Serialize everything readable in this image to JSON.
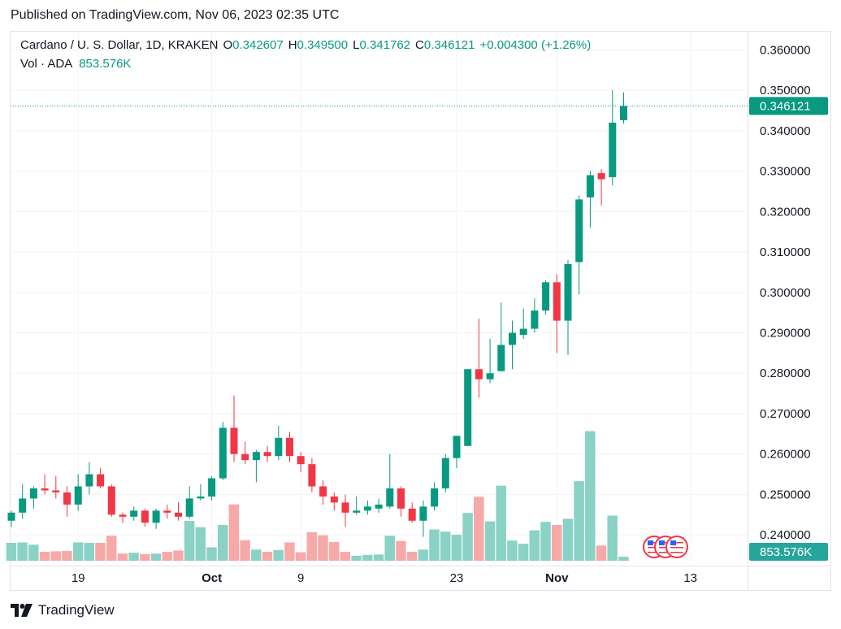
{
  "published": "Published on TradingView.com, Nov 06, 2023 02:35 UTC",
  "legend": {
    "symbol": "Cardano / U. S. Dollar, 1D, KRAKEN",
    "o_label": "O",
    "o_value": "0.342607",
    "h_label": "H",
    "h_value": "0.349500",
    "l_label": "L",
    "l_value": "0.341762",
    "c_label": "C",
    "c_value": "0.346121",
    "change": "+0.004300 (+1.26%)"
  },
  "volume_legend": {
    "label": "Vol · ADA",
    "value": "853.576K"
  },
  "footer": {
    "brand": "TradingView",
    "logo_icon": "tradingview-logo-icon"
  },
  "colors": {
    "up": "#089981",
    "down": "#f23645",
    "up_volume": "#8ad1c6",
    "down_volume": "#f7a9a7",
    "grid": "#f0f3fa"
  },
  "chart_data": {
    "type": "candlestick",
    "y_ticks": [
      "0.360000",
      "0.350000",
      "0.340000",
      "0.330000",
      "0.320000",
      "0.310000",
      "0.300000",
      "0.290000",
      "0.280000",
      "0.270000",
      "0.260000",
      "0.250000",
      "0.240000"
    ],
    "y_range": [
      0.2334,
      0.3645
    ],
    "x_ticks": [
      {
        "label": "19",
        "index": 6
      },
      {
        "label": "Oct",
        "index": 18
      },
      {
        "label": "9",
        "index": 26
      },
      {
        "label": "23",
        "index": 40
      },
      {
        "label": "Nov",
        "index": 49
      },
      {
        "label": "13",
        "index": 61
      }
    ],
    "x_labels_note": "index 0 ≈ 2023-09-13, daily candles",
    "last_price": "0.346121",
    "last_volume": "853.576K",
    "volume_scale_max": 30,
    "candles": [
      {
        "o": 0.2435,
        "h": 0.246,
        "l": 0.242,
        "c": 0.2455,
        "v": 4.0
      },
      {
        "o": 0.2455,
        "h": 0.2525,
        "l": 0.244,
        "c": 0.249,
        "v": 4.1
      },
      {
        "o": 0.249,
        "h": 0.252,
        "l": 0.2465,
        "c": 0.2515,
        "v": 3.6
      },
      {
        "o": 0.2515,
        "h": 0.255,
        "l": 0.25,
        "c": 0.251,
        "v": 2.0
      },
      {
        "o": 0.251,
        "h": 0.2545,
        "l": 0.249,
        "c": 0.2505,
        "v": 2.1
      },
      {
        "o": 0.2505,
        "h": 0.252,
        "l": 0.2445,
        "c": 0.2475,
        "v": 2.2
      },
      {
        "o": 0.2475,
        "h": 0.255,
        "l": 0.246,
        "c": 0.252,
        "v": 4.1
      },
      {
        "o": 0.252,
        "h": 0.258,
        "l": 0.25,
        "c": 0.255,
        "v": 4.0
      },
      {
        "o": 0.255,
        "h": 0.2565,
        "l": 0.2515,
        "c": 0.252,
        "v": 4.0
      },
      {
        "o": 0.252,
        "h": 0.2525,
        "l": 0.2445,
        "c": 0.245,
        "v": 5.6
      },
      {
        "o": 0.245,
        "h": 0.2455,
        "l": 0.243,
        "c": 0.2445,
        "v": 1.6
      },
      {
        "o": 0.2445,
        "h": 0.247,
        "l": 0.2435,
        "c": 0.246,
        "v": 1.8
      },
      {
        "o": 0.246,
        "h": 0.2465,
        "l": 0.242,
        "c": 0.243,
        "v": 1.5
      },
      {
        "o": 0.243,
        "h": 0.2465,
        "l": 0.2415,
        "c": 0.246,
        "v": 1.6
      },
      {
        "o": 0.246,
        "h": 0.2475,
        "l": 0.244,
        "c": 0.2455,
        "v": 2.0
      },
      {
        "o": 0.2455,
        "h": 0.248,
        "l": 0.2435,
        "c": 0.2445,
        "v": 2.3
      },
      {
        "o": 0.2445,
        "h": 0.252,
        "l": 0.244,
        "c": 0.249,
        "v": 8.9
      },
      {
        "o": 0.249,
        "h": 0.2525,
        "l": 0.2485,
        "c": 0.2495,
        "v": 7.5
      },
      {
        "o": 0.2495,
        "h": 0.2545,
        "l": 0.2485,
        "c": 0.254,
        "v": 3.0
      },
      {
        "o": 0.254,
        "h": 0.268,
        "l": 0.2535,
        "c": 0.2665,
        "v": 8.0
      },
      {
        "o": 0.2665,
        "h": 0.2745,
        "l": 0.258,
        "c": 0.26,
        "v": 12.6
      },
      {
        "o": 0.26,
        "h": 0.263,
        "l": 0.2575,
        "c": 0.2585,
        "v": 4.6
      },
      {
        "o": 0.2585,
        "h": 0.261,
        "l": 0.253,
        "c": 0.2605,
        "v": 2.5
      },
      {
        "o": 0.2605,
        "h": 0.262,
        "l": 0.258,
        "c": 0.2595,
        "v": 2.0
      },
      {
        "o": 0.2595,
        "h": 0.267,
        "l": 0.2585,
        "c": 0.264,
        "v": 2.4
      },
      {
        "o": 0.264,
        "h": 0.2655,
        "l": 0.258,
        "c": 0.2595,
        "v": 4.1
      },
      {
        "o": 0.2595,
        "h": 0.2605,
        "l": 0.2555,
        "c": 0.2575,
        "v": 1.9
      },
      {
        "o": 0.2575,
        "h": 0.259,
        "l": 0.2505,
        "c": 0.252,
        "v": 6.4
      },
      {
        "o": 0.252,
        "h": 0.2535,
        "l": 0.2475,
        "c": 0.2495,
        "v": 5.7
      },
      {
        "o": 0.2495,
        "h": 0.2505,
        "l": 0.246,
        "c": 0.248,
        "v": 4.2
      },
      {
        "o": 0.248,
        "h": 0.25,
        "l": 0.242,
        "c": 0.2455,
        "v": 2.0
      },
      {
        "o": 0.2455,
        "h": 0.2495,
        "l": 0.245,
        "c": 0.246,
        "v": 1.1
      },
      {
        "o": 0.246,
        "h": 0.2485,
        "l": 0.245,
        "c": 0.247,
        "v": 1.3
      },
      {
        "o": 0.2465,
        "h": 0.249,
        "l": 0.2455,
        "c": 0.2475,
        "v": 1.4
      },
      {
        "o": 0.247,
        "h": 0.26,
        "l": 0.2465,
        "c": 0.2515,
        "v": 5.6
      },
      {
        "o": 0.2515,
        "h": 0.252,
        "l": 0.2445,
        "c": 0.2465,
        "v": 4.4
      },
      {
        "o": 0.2465,
        "h": 0.248,
        "l": 0.243,
        "c": 0.2435,
        "v": 2.0
      },
      {
        "o": 0.2435,
        "h": 0.2485,
        "l": 0.2395,
        "c": 0.247,
        "v": 2.5
      },
      {
        "o": 0.247,
        "h": 0.253,
        "l": 0.246,
        "c": 0.2515,
        "v": 7.0
      },
      {
        "o": 0.2515,
        "h": 0.26,
        "l": 0.2505,
        "c": 0.259,
        "v": 6.5
      },
      {
        "o": 0.259,
        "h": 0.2645,
        "l": 0.2565,
        "c": 0.2645,
        "v": 5.8
      },
      {
        "o": 0.262,
        "h": 0.281,
        "l": 0.262,
        "c": 0.281,
        "v": 10.7
      },
      {
        "o": 0.281,
        "h": 0.2935,
        "l": 0.274,
        "c": 0.2785,
        "v": 14.3
      },
      {
        "o": 0.2785,
        "h": 0.2885,
        "l": 0.2775,
        "c": 0.28,
        "v": 8.8
      },
      {
        "o": 0.2805,
        "h": 0.2975,
        "l": 0.2805,
        "c": 0.287,
        "v": 16.8
      },
      {
        "o": 0.287,
        "h": 0.293,
        "l": 0.281,
        "c": 0.29,
        "v": 4.5
      },
      {
        "o": 0.2895,
        "h": 0.296,
        "l": 0.2885,
        "c": 0.291,
        "v": 3.8
      },
      {
        "o": 0.291,
        "h": 0.2985,
        "l": 0.29,
        "c": 0.2955,
        "v": 6.8
      },
      {
        "o": 0.2955,
        "h": 0.303,
        "l": 0.2945,
        "c": 0.3025,
        "v": 8.7
      },
      {
        "o": 0.3025,
        "h": 0.3045,
        "l": 0.285,
        "c": 0.293,
        "v": 8.0
      },
      {
        "o": 0.293,
        "h": 0.308,
        "l": 0.2845,
        "c": 0.307,
        "v": 9.4
      },
      {
        "o": 0.3075,
        "h": 0.324,
        "l": 0.2995,
        "c": 0.323,
        "v": 17.8
      },
      {
        "o": 0.3235,
        "h": 0.33,
        "l": 0.316,
        "c": 0.329,
        "v": 29.0
      },
      {
        "o": 0.3295,
        "h": 0.3305,
        "l": 0.3215,
        "c": 0.328,
        "v": 3.4
      },
      {
        "o": 0.3285,
        "h": 0.35,
        "l": 0.3265,
        "c": 0.342,
        "v": 10.1
      },
      {
        "o": 0.3426,
        "h": 0.3495,
        "l": 0.3418,
        "c": 0.3461,
        "v": 0.9
      }
    ]
  }
}
